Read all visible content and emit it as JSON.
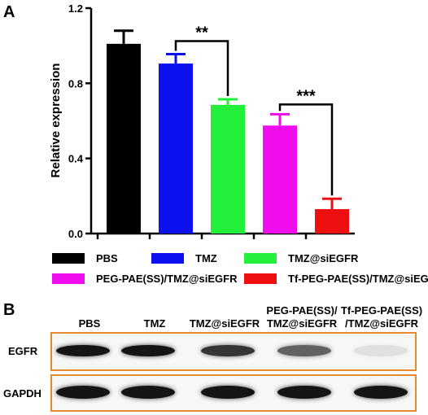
{
  "panel_a": {
    "letter": "A",
    "chart_data": {
      "type": "bar",
      "categories": [
        "PBS",
        "TMZ",
        "TMZ@siEGFR",
        "PEG-PAE(SS)/TMZ@siEGFR",
        "Tf-PEG-PAE(SS)/TMZ@siEGFR"
      ],
      "values": [
        1.01,
        0.905,
        0.685,
        0.575,
        0.13
      ],
      "errors": [
        0.07,
        0.05,
        0.03,
        0.06,
        0.055
      ],
      "colors": [
        "#000000",
        "#0a10ee",
        "#22f03a",
        "#ef0cef",
        "#ee1010"
      ],
      "ylabel": "Relative expression",
      "ylim": [
        0.0,
        1.2
      ],
      "yticks": [
        "0.0",
        "0.4",
        "0.8",
        "1.2"
      ],
      "significance": [
        {
          "from": 1,
          "to": 2,
          "label": "**"
        },
        {
          "from": 3,
          "to": 4,
          "label": "***"
        }
      ],
      "legend": {
        "placement": "bottom",
        "entries": [
          {
            "label": "PBS",
            "color": "#000000"
          },
          {
            "label": "TMZ",
            "color": "#0a10ee"
          },
          {
            "label": "TMZ@siEGFR",
            "color": "#22f03a"
          },
          {
            "label": "PEG-PAE(SS)/TMZ@siEGFR",
            "color": "#ef0cef"
          },
          {
            "label": "Tf-PEG-PAE(SS)/TMZ@siEGFR",
            "color": "#ee1010"
          }
        ]
      }
    }
  },
  "panel_b": {
    "letter": "B",
    "lanes": [
      {
        "line1": "PBS",
        "line2": ""
      },
      {
        "line1": "TMZ",
        "line2": ""
      },
      {
        "line1": "TMZ@siEGFR",
        "line2": ""
      },
      {
        "line1": "PEG-PAE(SS)/",
        "line2": "TMZ@siEGFR"
      },
      {
        "line1": "Tf-PEG-PAE(SS)",
        "line2": "/TMZ@siEGFR"
      }
    ],
    "rows": [
      {
        "label": "EGFR",
        "band_intensity": [
          1.0,
          1.0,
          0.9,
          0.75,
          0.12
        ]
      },
      {
        "label": "GAPDH",
        "band_intensity": [
          1.0,
          1.0,
          1.0,
          1.0,
          1.0
        ]
      }
    ],
    "frame_color": "#e8892f"
  }
}
